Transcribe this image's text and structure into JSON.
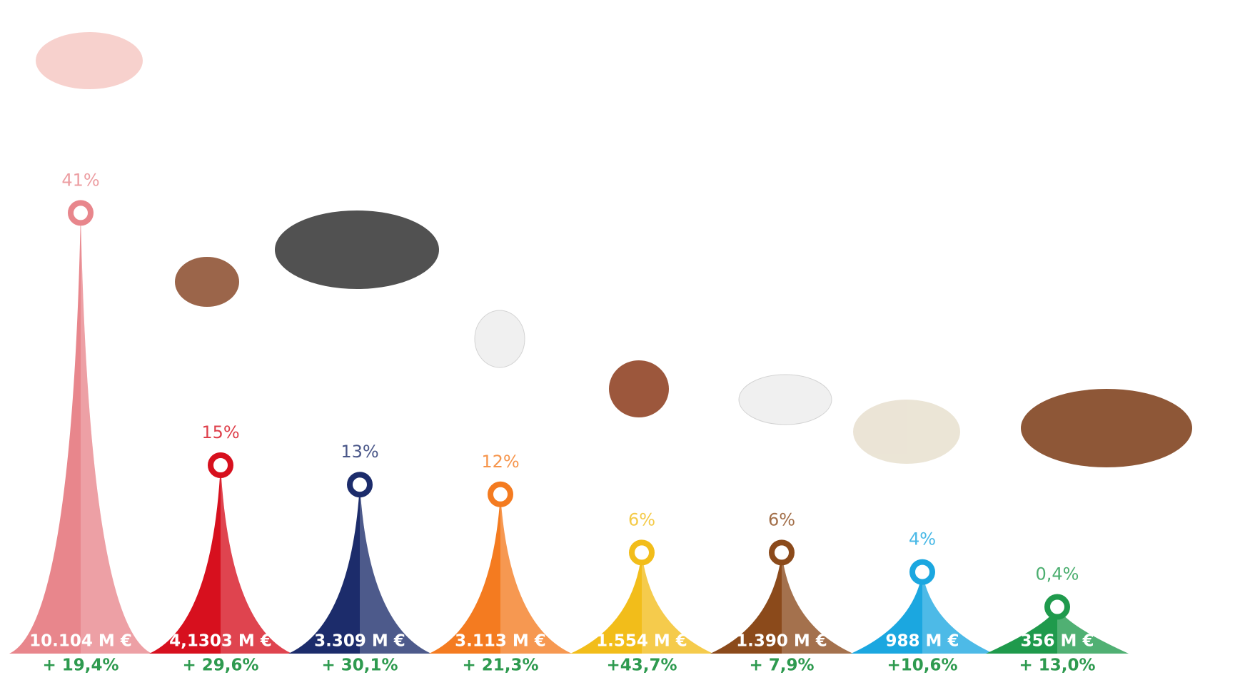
{
  "chart_data": {
    "type": "spike",
    "values": [
      41,
      15,
      13,
      12,
      6,
      6,
      4,
      0.4
    ],
    "value_labels": [
      "41%",
      "15%",
      "13%",
      "12%",
      "6%",
      "6%",
      "4%",
      "0,4%"
    ],
    "amount_labels": [
      "10.104 M €",
      "4,1303 M €",
      "3.309 M €",
      "3.113 M €",
      "1.554 M €",
      "1.390 M €",
      "988 M €",
      "356 M €"
    ],
    "change_labels": [
      "+ 19,4%",
      "+ 29,6%",
      "+ 30,1%",
      "+ 21,3%",
      "+43,7%",
      "+ 7,9%",
      "+10,6%",
      "+ 13,0%"
    ],
    "colors": [
      "#e8868c",
      "#d7101e",
      "#1c2c6b",
      "#f47b20",
      "#f2bd1a",
      "#8b4a1b",
      "#1ba7e0",
      "#1f9a4c"
    ]
  }
}
